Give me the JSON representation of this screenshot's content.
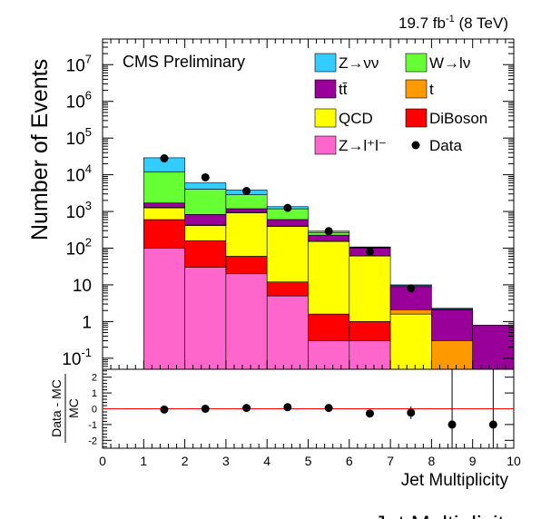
{
  "header": {
    "lumi_value": "19.7 fb",
    "lumi_exp": "-1",
    "lumi_energy": " (8 TeV)",
    "cms_label": "CMS Preliminary"
  },
  "chart_data": [
    {
      "type": "bar",
      "stacked": true,
      "log_y": true,
      "ylabel": "Number of Events",
      "xlabel": "",
      "xlim": [
        0,
        10
      ],
      "ylim": [
        0.05,
        50000000
      ],
      "x_edges": [
        0,
        1,
        2,
        3,
        4,
        5,
        6,
        7,
        8,
        9,
        10
      ],
      "y_ticks": [
        {
          "value": 0.1,
          "base": "10",
          "exp": "-1"
        },
        {
          "value": 1,
          "base": "1",
          "exp": ""
        },
        {
          "value": 10,
          "base": "10",
          "exp": ""
        },
        {
          "value": 100,
          "base": "10",
          "exp": "2"
        },
        {
          "value": 1000,
          "base": "10",
          "exp": "3"
        },
        {
          "value": 10000,
          "base": "10",
          "exp": "4"
        },
        {
          "value": 100000,
          "base": "10",
          "exp": "5"
        },
        {
          "value": 1000000,
          "base": "10",
          "exp": "6"
        },
        {
          "value": 10000000,
          "base": "10",
          "exp": "7"
        }
      ],
      "stack_order_bottom_to_top": [
        "Z→l⁺l⁻",
        "DiBoson",
        "QCD",
        "t",
        "tt̄",
        "W→lν",
        "Z→νν"
      ],
      "series": [
        {
          "name": "Z→l⁺l⁻",
          "color": "#ff66cc",
          "values": [
            0,
            100,
            30,
            20,
            5,
            0.3,
            0.3,
            0,
            0,
            0
          ]
        },
        {
          "name": "DiBoson",
          "color": "#ff0000",
          "values": [
            0,
            500,
            130,
            40,
            7,
            1.3,
            0.7,
            0,
            0,
            0
          ]
        },
        {
          "name": "QCD",
          "color": "#ffff00",
          "values": [
            0,
            650,
            250,
            860,
            380,
            150,
            60,
            1.6,
            0,
            0
          ]
        },
        {
          "name": "t",
          "color": "#ff9900",
          "values": [
            0,
            50,
            20,
            20,
            10,
            5,
            3,
            0.5,
            0.3,
            0
          ]
        },
        {
          "name": "tt̄",
          "color": "#990099",
          "values": [
            0,
            400,
            400,
            250,
            200,
            70,
            37,
            6.9,
            1.8,
            0.8
          ]
        },
        {
          "name": "W→lν",
          "color": "#66ff33",
          "values": [
            0,
            10300,
            3200,
            1660,
            580,
            40,
            4,
            0.5,
            0.1,
            0
          ]
        },
        {
          "name": "Z→νν",
          "color": "#33ccff",
          "values": [
            0,
            17000,
            2000,
            1000,
            170,
            25,
            3,
            0.5,
            0.1,
            0
          ]
        }
      ],
      "data_series": {
        "name": "Data",
        "x": [
          1.5,
          2.5,
          3.5,
          4.5,
          5.5,
          6.5,
          7.5
        ],
        "y": [
          28000,
          8500,
          3600,
          1250,
          290,
          80,
          8
        ]
      }
    },
    {
      "type": "scatter",
      "ylabel_numerator": "Data - MC",
      "ylabel_denominator": "MC",
      "xlabel": "Jet Multiplicity",
      "xlim": [
        0,
        10
      ],
      "ylim": [
        -2.5,
        2.5
      ],
      "x_ticks": [
        "0",
        "1",
        "2",
        "3",
        "4",
        "5",
        "6",
        "7",
        "8",
        "9",
        "10"
      ],
      "y_ticks": [
        "-2",
        "-1",
        "0",
        "1",
        "2"
      ],
      "reference_line": {
        "y": 0,
        "color": "#ff0000"
      },
      "points": {
        "x": [
          1.5,
          2.5,
          3.5,
          4.5,
          5.5,
          6.5,
          7.5,
          8.5,
          9.5
        ],
        "y": [
          -0.05,
          0.0,
          0.05,
          0.1,
          0.05,
          -0.3,
          -0.25,
          -1.0,
          -1.0
        ],
        "err": [
          0.03,
          0.03,
          0.04,
          0.05,
          0.08,
          0.15,
          0.4,
          8,
          8
        ]
      }
    }
  ],
  "legend": {
    "placement": "top-right",
    "entries": [
      {
        "label": "Z→νν",
        "color": "#33ccff",
        "marker": "box"
      },
      {
        "label": "W→lν",
        "color": "#66ff33",
        "marker": "box"
      },
      {
        "label": "tt̄",
        "color": "#990099",
        "marker": "box"
      },
      {
        "label": "t",
        "color": "#ff9900",
        "marker": "box"
      },
      {
        "label": "QCD",
        "color": "#ffff00",
        "marker": "box"
      },
      {
        "label": "DiBoson",
        "color": "#ff0000",
        "marker": "box"
      },
      {
        "label": "Z→l⁺l⁻",
        "color": "#ff66cc",
        "marker": "box"
      },
      {
        "label": "Data",
        "color": "#000000",
        "marker": "dot"
      }
    ]
  },
  "footer_ghost_text": "Jet Multiplicity"
}
